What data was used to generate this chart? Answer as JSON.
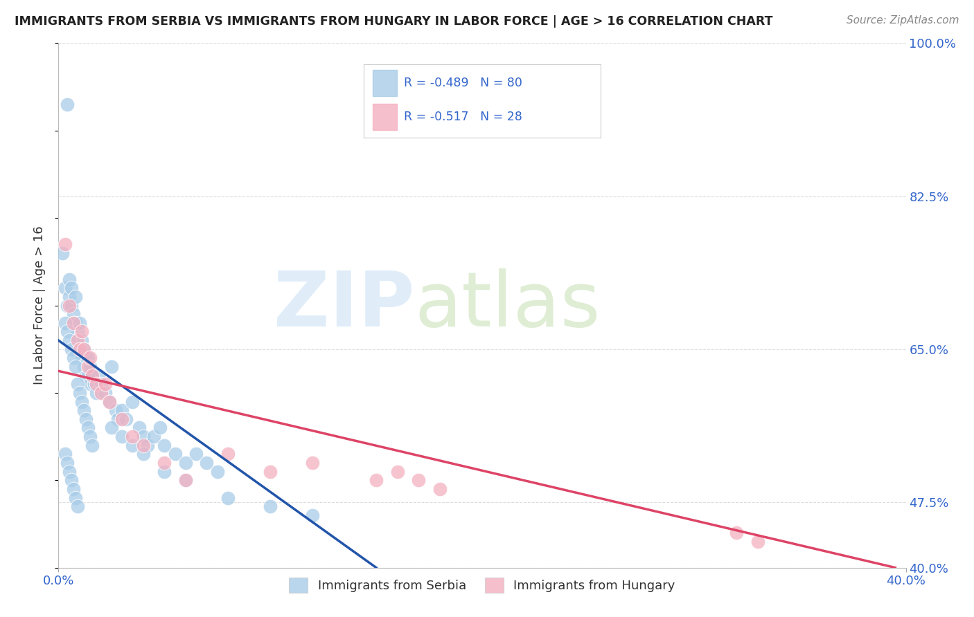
{
  "title": "IMMIGRANTS FROM SERBIA VS IMMIGRANTS FROM HUNGARY IN LABOR FORCE | AGE > 16 CORRELATION CHART",
  "source": "Source: ZipAtlas.com",
  "ylabel": "In Labor Force | Age > 16",
  "xlim": [
    0.0,
    0.4
  ],
  "ylim": [
    0.4,
    1.0
  ],
  "serbia_R": -0.489,
  "serbia_N": 80,
  "hungary_R": -0.517,
  "hungary_N": 28,
  "serbia_color": "#a8cce8",
  "hungary_color": "#f4b0c0",
  "serbia_line_color": "#2255aa",
  "hungary_line_color": "#dd4466",
  "text_color": "#3366cc",
  "background_color": "#ffffff",
  "grid_color": "#dddddd",
  "right_yticks": [
    0.4,
    0.475,
    0.65,
    0.825,
    1.0
  ],
  "right_yticklabels": [
    "40.0%",
    "47.5%",
    "65.0%",
    "82.5%",
    "100.0%"
  ],
  "serbia_x": [
    0.004,
    0.002,
    0.003,
    0.004,
    0.005,
    0.005,
    0.006,
    0.006,
    0.007,
    0.007,
    0.008,
    0.008,
    0.009,
    0.009,
    0.01,
    0.01,
    0.011,
    0.011,
    0.012,
    0.012,
    0.013,
    0.013,
    0.014,
    0.014,
    0.015,
    0.015,
    0.016,
    0.017,
    0.018,
    0.019,
    0.02,
    0.022,
    0.024,
    0.025,
    0.027,
    0.028,
    0.03,
    0.032,
    0.035,
    0.038,
    0.04,
    0.042,
    0.045,
    0.048,
    0.05,
    0.055,
    0.06,
    0.065,
    0.07,
    0.075,
    0.003,
    0.004,
    0.005,
    0.006,
    0.007,
    0.008,
    0.009,
    0.01,
    0.011,
    0.012,
    0.013,
    0.014,
    0.015,
    0.016,
    0.003,
    0.004,
    0.005,
    0.006,
    0.007,
    0.008,
    0.009,
    0.025,
    0.03,
    0.035,
    0.04,
    0.05,
    0.06,
    0.08,
    0.1,
    0.12
  ],
  "serbia_y": [
    0.93,
    0.76,
    0.72,
    0.7,
    0.73,
    0.71,
    0.72,
    0.7,
    0.69,
    0.68,
    0.71,
    0.68,
    0.67,
    0.66,
    0.68,
    0.65,
    0.66,
    0.64,
    0.65,
    0.63,
    0.64,
    0.62,
    0.64,
    0.62,
    0.63,
    0.61,
    0.62,
    0.61,
    0.6,
    0.62,
    0.61,
    0.6,
    0.59,
    0.63,
    0.58,
    0.57,
    0.58,
    0.57,
    0.59,
    0.56,
    0.55,
    0.54,
    0.55,
    0.56,
    0.54,
    0.53,
    0.52,
    0.53,
    0.52,
    0.51,
    0.68,
    0.67,
    0.66,
    0.65,
    0.64,
    0.63,
    0.61,
    0.6,
    0.59,
    0.58,
    0.57,
    0.56,
    0.55,
    0.54,
    0.53,
    0.52,
    0.51,
    0.5,
    0.49,
    0.48,
    0.47,
    0.56,
    0.55,
    0.54,
    0.53,
    0.51,
    0.5,
    0.48,
    0.47,
    0.46
  ],
  "hungary_x": [
    0.003,
    0.005,
    0.007,
    0.009,
    0.01,
    0.011,
    0.012,
    0.014,
    0.015,
    0.016,
    0.018,
    0.02,
    0.022,
    0.024,
    0.03,
    0.035,
    0.04,
    0.05,
    0.06,
    0.08,
    0.1,
    0.12,
    0.15,
    0.16,
    0.17,
    0.18,
    0.32,
    0.33
  ],
  "hungary_y": [
    0.77,
    0.7,
    0.68,
    0.66,
    0.65,
    0.67,
    0.65,
    0.63,
    0.64,
    0.62,
    0.61,
    0.6,
    0.61,
    0.59,
    0.57,
    0.55,
    0.54,
    0.52,
    0.5,
    0.53,
    0.51,
    0.52,
    0.5,
    0.51,
    0.5,
    0.49,
    0.44,
    0.43
  ],
  "serbia_line_x": [
    0.0,
    0.15
  ],
  "serbia_line_y": [
    0.66,
    0.4
  ],
  "hungary_line_x": [
    0.0,
    0.395
  ],
  "hungary_line_y": [
    0.625,
    0.4
  ]
}
